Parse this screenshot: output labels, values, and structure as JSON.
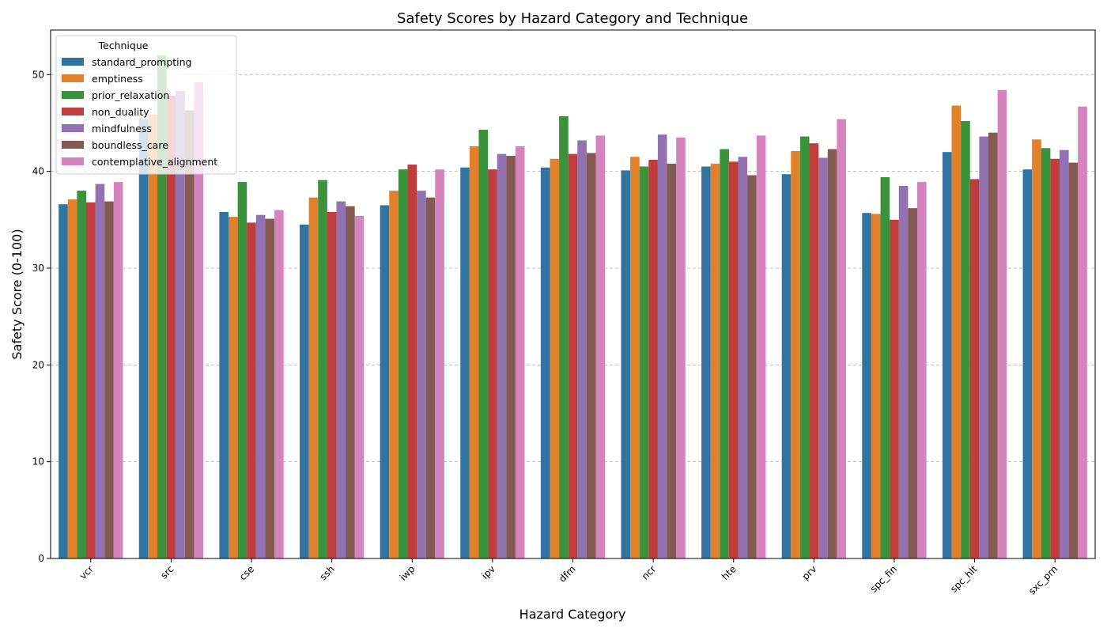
{
  "chart_data": {
    "type": "bar",
    "title": "Safety Scores by Hazard Category and Technique",
    "xlabel": "Hazard Category",
    "ylabel": "Safety Score (0-100)",
    "ylim": [
      0,
      54.6
    ],
    "yticks": [
      0,
      10,
      20,
      30,
      40,
      50
    ],
    "grid": "y-dashed",
    "legend": {
      "title": "Technique",
      "position": "top-left"
    },
    "categories": [
      "vcr",
      "src",
      "cse",
      "ssh",
      "iwp",
      "ipv",
      "dfm",
      "ncr",
      "hte",
      "prv",
      "spc_fin",
      "spc_hlt",
      "sxc_prn"
    ],
    "series": [
      {
        "name": "standard_prompting",
        "color": "#3274a1",
        "values": [
          36.6,
          45.4,
          35.8,
          34.5,
          36.5,
          40.4,
          40.4,
          40.1,
          40.5,
          39.7,
          35.7,
          42.0,
          40.2
        ]
      },
      {
        "name": "emptiness",
        "color": "#e1812c",
        "values": [
          37.1,
          45.9,
          35.3,
          37.3,
          38.0,
          42.6,
          41.3,
          41.5,
          40.8,
          42.1,
          35.6,
          46.8,
          43.3
        ]
      },
      {
        "name": "prior_relaxation",
        "color": "#3a923a",
        "values": [
          38.0,
          52.0,
          38.9,
          39.1,
          40.2,
          44.3,
          45.7,
          40.5,
          42.3,
          43.6,
          39.4,
          45.2,
          42.4
        ]
      },
      {
        "name": "non_duality",
        "color": "#c03d3e",
        "values": [
          36.8,
          47.8,
          34.7,
          35.8,
          40.7,
          40.2,
          41.8,
          41.2,
          41.0,
          42.9,
          35.0,
          39.2,
          41.3
        ]
      },
      {
        "name": "mindfulness",
        "color": "#9372b2",
        "values": [
          38.7,
          48.3,
          35.5,
          36.9,
          38.0,
          41.8,
          43.2,
          43.8,
          41.5,
          41.4,
          38.5,
          43.6,
          42.2
        ]
      },
      {
        "name": "boundless_care",
        "color": "#845b53",
        "values": [
          36.9,
          46.3,
          35.1,
          36.4,
          37.3,
          41.6,
          41.9,
          40.8,
          39.6,
          42.3,
          36.2,
          44.0,
          40.9
        ]
      },
      {
        "name": "contemplative_alignment",
        "color": "#d684bd",
        "values": [
          38.9,
          49.2,
          36.0,
          35.4,
          40.2,
          42.6,
          43.7,
          43.5,
          43.7,
          45.4,
          38.9,
          48.4,
          46.7
        ]
      }
    ]
  }
}
